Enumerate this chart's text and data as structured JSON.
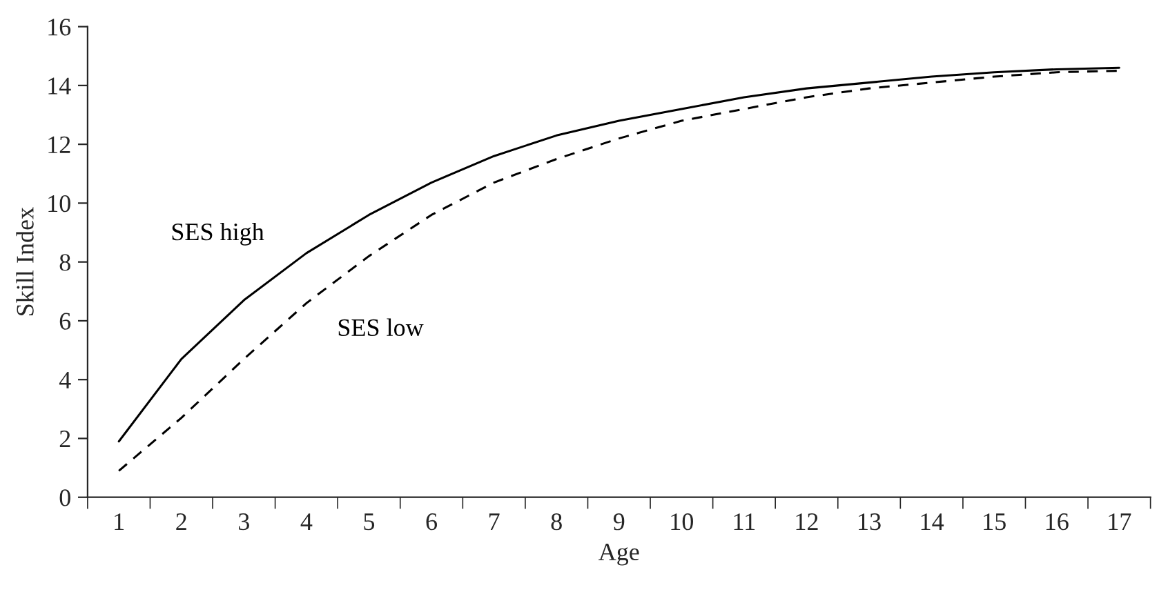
{
  "chart_data": {
    "type": "line",
    "xlabel": "Age",
    "ylabel": "Skill Index",
    "categories": [
      "1",
      "2",
      "3",
      "4",
      "5",
      "6",
      "7",
      "8",
      "9",
      "10",
      "11",
      "12",
      "13",
      "14",
      "15",
      "16",
      "17"
    ],
    "series": [
      {
        "name": "SES high",
        "color": "#000000",
        "line_style": "solid",
        "values": [
          1.9,
          4.7,
          6.7,
          8.3,
          9.6,
          10.7,
          11.6,
          12.3,
          12.8,
          13.2,
          13.6,
          13.9,
          14.1,
          14.3,
          14.45,
          14.55,
          14.6
        ]
      },
      {
        "name": "SES low",
        "color": "#000000",
        "line_style": "dashed",
        "values": [
          0.9,
          2.7,
          4.7,
          6.6,
          8.2,
          9.6,
          10.7,
          11.5,
          12.2,
          12.8,
          13.2,
          13.6,
          13.9,
          14.1,
          14.3,
          14.45,
          14.5
        ]
      }
    ],
    "ylim": [
      0,
      16
    ],
    "yticks": [
      0,
      2,
      4,
      6,
      8,
      10,
      12,
      14,
      16
    ],
    "grid": false,
    "legend": false,
    "marker": "none"
  }
}
